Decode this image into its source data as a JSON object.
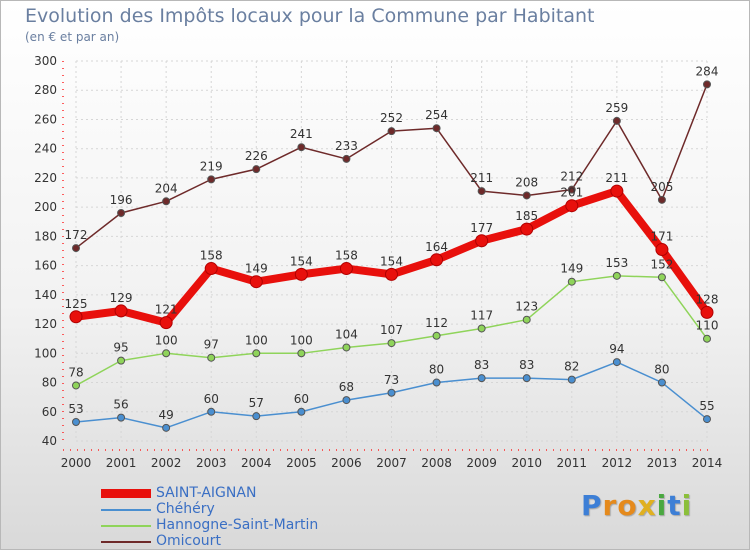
{
  "title": "Evolution des Impôts locaux pour la Commune par Habitant",
  "subtitle": "(en € et par an)",
  "logo": {
    "letters": [
      "P",
      "r",
      "o",
      "x",
      "i",
      "t",
      "i"
    ],
    "colors": [
      "#3d7fd6",
      "#e58a1c",
      "#e58a1c",
      "#e0b020",
      "#4aa840",
      "#3d7fd6",
      "#8bbf3a"
    ]
  },
  "chart_data": {
    "type": "line",
    "x": [
      2000,
      2001,
      2002,
      2003,
      2004,
      2005,
      2006,
      2007,
      2008,
      2009,
      2010,
      2011,
      2012,
      2013,
      2014
    ],
    "ylim": [
      40,
      300
    ],
    "yticks": [
      40,
      60,
      80,
      100,
      120,
      140,
      160,
      180,
      200,
      220,
      240,
      260,
      280,
      300
    ],
    "grid": true,
    "legend_position": "bottom-left",
    "series": [
      {
        "name": "SAINT-AIGNAN",
        "color": "#e8100c",
        "emphasis": true,
        "values": [
          125,
          129,
          121,
          158,
          149,
          154,
          158,
          154,
          164,
          177,
          185,
          201,
          211,
          171,
          128
        ],
        "labels": [
          "125",
          "129",
          "121",
          "158",
          "149",
          "154",
          "158",
          "154",
          "164",
          "177",
          "185",
          "201",
          "211",
          "171",
          "128"
        ]
      },
      {
        "name": "Chéhéry",
        "color": "#4a8fd0",
        "emphasis": false,
        "values": [
          53,
          56,
          49,
          60,
          57,
          60,
          68,
          73,
          80,
          83,
          83,
          82,
          94,
          80,
          55
        ],
        "labels": [
          "53",
          "56",
          "49",
          "60",
          "57",
          "60",
          "68",
          "73",
          "80",
          "83",
          "83",
          "82",
          "94",
          "80",
          "55"
        ]
      },
      {
        "name": "Hannogne-Saint-Martin",
        "color": "#8fd45a",
        "emphasis": false,
        "values": [
          78,
          95,
          100,
          97,
          100,
          100,
          104,
          107,
          112,
          117,
          123,
          149,
          153,
          152,
          110
        ],
        "labels": [
          "78",
          "95",
          "100",
          "97",
          "100",
          "100",
          "104",
          "107",
          "112",
          "117",
          "123",
          "149",
          "153",
          "152",
          "110"
        ]
      },
      {
        "name": "Omicourt",
        "color": "#6e2a2a",
        "emphasis": false,
        "values": [
          172,
          196,
          204,
          219,
          226,
          241,
          233,
          252,
          254,
          211,
          208,
          212,
          259,
          205,
          284
        ],
        "labels": [
          "172",
          "196",
          "204",
          "219",
          "226",
          "241",
          "233",
          "252",
          "254",
          "211",
          "208",
          "212",
          "259",
          "205",
          "284"
        ]
      }
    ]
  }
}
